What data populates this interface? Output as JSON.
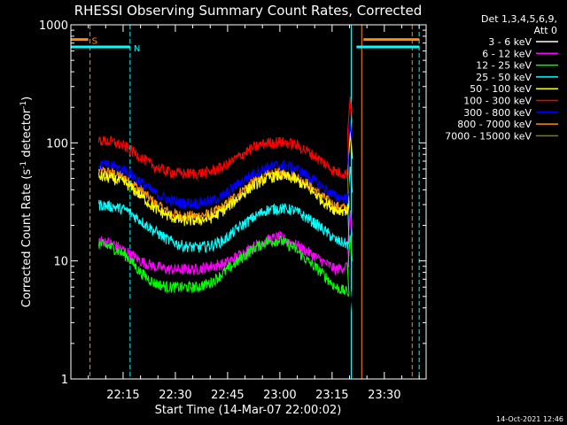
{
  "chart_data": {
    "type": "line",
    "title": "RHESSI Observing Summary Count Rates, Corrected",
    "xlabel": "Start Time (14-Mar-07 22:00:02)",
    "ylabel_main": "Corrected Count Rate (s",
    "ylabel_sup1": "-1",
    "ylabel_mid": " detector",
    "ylabel_sup2": "-1",
    "ylabel_end": ")",
    "y_scale": "log",
    "ylim": [
      1,
      1000
    ],
    "xlim_minutes": [
      0,
      102
    ],
    "x_ticks": [
      {
        "minute": 15,
        "label": "22:15"
      },
      {
        "minute": 30,
        "label": "22:30"
      },
      {
        "minute": 45,
        "label": "22:45"
      },
      {
        "minute": 60,
        "label": "23:00"
      },
      {
        "minute": 75,
        "label": "23:15"
      },
      {
        "minute": 90,
        "label": "23:30"
      }
    ],
    "y_ticks": [
      {
        "value": 1,
        "label": "1"
      },
      {
        "value": 10,
        "label": "10"
      },
      {
        "value": 100,
        "label": "100"
      },
      {
        "value": 1000,
        "label": "1000"
      }
    ],
    "legend_header_1": "Det 1,3,4,5,6,9,",
    "legend_header_2": "Att 0",
    "footer_timestamp": "14-Oct-2021 12:46",
    "grid": false,
    "legend_position": "right",
    "markers": [
      {
        "label": "S",
        "minute_start": 0,
        "minute_end": 5,
        "level": 750,
        "color": "#ff8c00"
      },
      {
        "label": "N",
        "minute_start": 0,
        "minute_end": 17,
        "level": 650,
        "color": "#00ffff"
      }
    ],
    "right_markers": [
      {
        "minute_start": 84,
        "minute_end": 100,
        "level": 750,
        "color": "#ff8c00"
      },
      {
        "minute_start": 82,
        "minute_end": 100,
        "level": 650,
        "color": "#00ffff"
      }
    ],
    "vertical_lines": [
      {
        "minute": 0,
        "color": "#00ffff",
        "style": "solid"
      },
      {
        "minute": 5.5,
        "color": "#ff8c00",
        "style": "dashed"
      },
      {
        "minute": 17,
        "color": "#00ffff",
        "style": "dashed"
      },
      {
        "minute": 80.5,
        "color": "#00ffff",
        "style": "solid"
      },
      {
        "minute": 83.5,
        "color": "#ff8c00",
        "style": "solid"
      },
      {
        "minute": 98,
        "color": "#ff8c00",
        "style": "dashed"
      },
      {
        "minute": 100,
        "color": "#00ffff",
        "style": "dashed"
      }
    ],
    "data_range_minutes": [
      8,
      80
    ],
    "flare_start_minute": 79,
    "series": [
      {
        "name": "3 - 6 keV",
        "color": "#000000",
        "x": [
          8,
          12,
          16,
          20,
          24,
          28,
          32,
          36,
          40,
          44,
          48,
          52,
          56,
          60,
          64,
          68,
          72,
          76,
          79
        ],
        "values": [
          6,
          6,
          5,
          3,
          2,
          1.5,
          1.5,
          1.5,
          1.5,
          2,
          3,
          4,
          5,
          5.5,
          5,
          4,
          2.5,
          1.5,
          2
        ]
      },
      {
        "name": "6 - 12 keV",
        "color": "#ff00ff",
        "x": [
          8,
          12,
          16,
          20,
          24,
          28,
          32,
          36,
          40,
          44,
          48,
          52,
          56,
          60,
          64,
          68,
          72,
          76,
          79
        ],
        "values": [
          15,
          14,
          12,
          10,
          9,
          8.5,
          8.5,
          8.5,
          9,
          9.5,
          11,
          13,
          15,
          16,
          14,
          12,
          10,
          8.5,
          9
        ]
      },
      {
        "name": "12 - 25 keV",
        "color": "#00ff00",
        "x": [
          8,
          12,
          16,
          20,
          24,
          28,
          32,
          36,
          40,
          44,
          48,
          52,
          56,
          60,
          64,
          68,
          72,
          76,
          79
        ],
        "values": [
          14,
          13,
          11,
          8,
          6.5,
          6,
          6,
          6,
          6.5,
          8,
          10,
          12.5,
          14.5,
          15,
          13,
          10,
          8,
          6,
          5.5
        ]
      },
      {
        "name": "25 - 50 keV",
        "color": "#00ffff",
        "x": [
          8,
          12,
          16,
          20,
          24,
          28,
          32,
          36,
          40,
          44,
          48,
          52,
          56,
          60,
          64,
          68,
          72,
          76,
          79
        ],
        "values": [
          30,
          29,
          27,
          22,
          18,
          15,
          13.5,
          13,
          13.5,
          15,
          19,
          23,
          27,
          28,
          27,
          23,
          19,
          15,
          14
        ]
      },
      {
        "name": "50 - 100 keV",
        "color": "#ffff00",
        "x": [
          8,
          12,
          16,
          20,
          24,
          28,
          32,
          36,
          40,
          44,
          48,
          52,
          56,
          60,
          64,
          68,
          72,
          76,
          79
        ],
        "values": [
          52,
          50,
          45,
          36,
          28,
          24,
          22,
          22,
          23,
          27,
          34,
          43,
          50,
          53,
          50,
          42,
          33,
          27,
          27
        ]
      },
      {
        "name": "100 - 300 keV",
        "color": "#ff0000",
        "x": [
          8,
          12,
          16,
          20,
          24,
          28,
          32,
          36,
          40,
          44,
          48,
          52,
          56,
          60,
          64,
          68,
          72,
          76,
          79
        ],
        "values": [
          105,
          102,
          92,
          76,
          63,
          57,
          55,
          55,
          57,
          63,
          76,
          90,
          100,
          102,
          98,
          85,
          70,
          57,
          55
        ]
      },
      {
        "name": "300 - 800 keV",
        "color": "#0000ff",
        "x": [
          8,
          12,
          16,
          20,
          24,
          28,
          32,
          36,
          40,
          44,
          48,
          52,
          56,
          60,
          64,
          68,
          72,
          76,
          79
        ],
        "values": [
          66,
          64,
          58,
          47,
          38,
          33,
          31,
          31,
          32,
          36,
          45,
          54,
          62,
          65,
          62,
          53,
          43,
          35,
          34
        ]
      },
      {
        "name": "800 - 7000 keV",
        "color": "#ff8c00",
        "x": [
          8,
          12,
          16,
          20,
          24,
          28,
          32,
          36,
          40,
          44,
          48,
          52,
          56,
          60,
          64,
          68,
          72,
          76,
          79
        ],
        "values": [
          58,
          56,
          50,
          40,
          31,
          26,
          24,
          24,
          25,
          29,
          37,
          46,
          53,
          56,
          53,
          45,
          36,
          29,
          28
        ]
      },
      {
        "name": "7000 - 15000 keV",
        "color": "#808000",
        "x": [
          8,
          12,
          16,
          20,
          24,
          28,
          32,
          36,
          40,
          44,
          48,
          52,
          56,
          60,
          64,
          68,
          72,
          76,
          79
        ],
        "values": [
          5,
          5,
          4.5,
          3,
          2,
          1.5,
          1.5,
          1.5,
          1.5,
          2,
          2.5,
          3.5,
          4.5,
          5,
          4.5,
          3.5,
          2,
          1.5,
          1.5
        ]
      }
    ]
  }
}
